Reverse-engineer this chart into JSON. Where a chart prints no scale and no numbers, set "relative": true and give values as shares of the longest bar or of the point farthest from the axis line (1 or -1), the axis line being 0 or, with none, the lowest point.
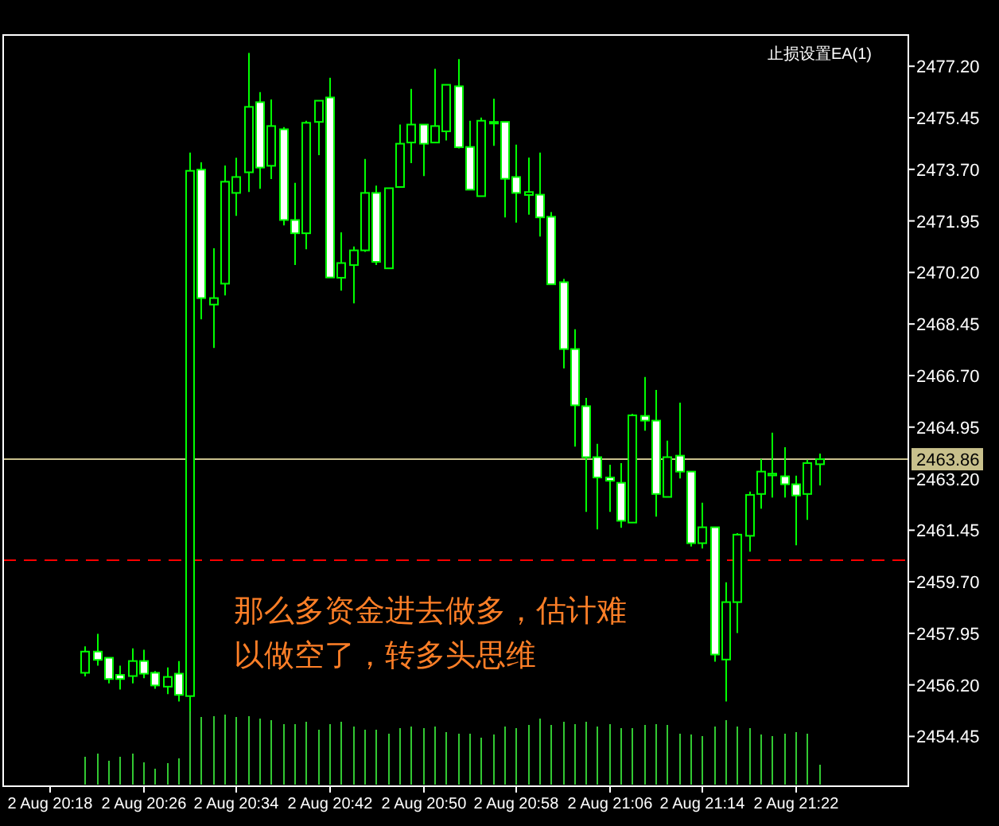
{
  "chart_data": [
    {
      "type": "candlestick",
      "color": "#00ff00",
      "categories": [
        null,
        null,
        null,
        null,
        null,
        "2 Aug 20:26",
        null,
        null,
        null,
        null,
        null,
        null,
        null,
        "2 Aug 20:34",
        null,
        null,
        null,
        null,
        null,
        null,
        null,
        "2 Aug 20:42",
        null,
        null,
        null,
        null,
        null,
        null,
        null,
        "2 Aug 20:50",
        null,
        null,
        null,
        null,
        null,
        null,
        null,
        "2 Aug 20:58",
        null,
        null,
        null,
        null,
        null,
        null,
        null,
        "2 Aug 21:06",
        null,
        null,
        null,
        null,
        null,
        null,
        null,
        "2 Aug 21:14",
        null,
        null,
        null,
        null,
        null,
        null,
        null,
        "2 Aug 21:22",
        null,
        null
      ],
      "ohlc": [
        [
          2456.61,
          2457.51,
          2456.49,
          2457.33
        ],
        [
          2457.33,
          2457.93,
          2456.85,
          2457.05
        ],
        [
          2457.12,
          2457.12,
          2456.25,
          2456.4
        ],
        [
          2456.54,
          2456.85,
          2456.04,
          2456.4
        ],
        [
          2456.5,
          2457.44,
          2456.25,
          2457.01
        ],
        [
          2457.01,
          2457.39,
          2456.43,
          2456.58
        ],
        [
          2456.61,
          2456.67,
          2456.07,
          2456.18
        ],
        [
          2456.14,
          2456.79,
          2455.89,
          2456.47
        ],
        [
          2456.58,
          2457.01,
          2455.64,
          2455.86
        ],
        [
          2455.82,
          2474.27,
          2455.28,
          2473.65
        ],
        [
          2473.69,
          2473.94,
          2468.61,
          2469.33
        ],
        [
          2469.11,
          2471.02,
          2467.64,
          2469.33
        ],
        [
          2469.82,
          2473.83,
          2469.42,
          2473.28
        ],
        [
          2472.9,
          2474.09,
          2472.12,
          2473.44
        ],
        [
          2473.6,
          2477.65,
          2472.93,
          2475.82
        ],
        [
          2475.98,
          2476.32,
          2473.04,
          2473.76
        ],
        [
          2473.82,
          2476.07,
          2473.37,
          2475.17
        ],
        [
          2475.06,
          2475.13,
          2471.8,
          2471.98
        ],
        [
          2471.98,
          2473.24,
          2470.45,
          2471.53
        ],
        [
          2471.53,
          2475.35,
          2470.99,
          2475.28
        ],
        [
          2475.31,
          2476.03,
          2474.18,
          2476.03
        ],
        [
          2476.14,
          2476.81,
          2470.03,
          2470.03
        ],
        [
          2470.02,
          2471.56,
          2469.58,
          2470.52
        ],
        [
          2470.45,
          2471.08,
          2469.15,
          2470.95
        ],
        [
          2470.95,
          2474.05,
          2470.9,
          2472.9
        ],
        [
          2472.9,
          2473.15,
          2470.45,
          2470.56
        ],
        [
          2470.34,
          2473.06,
          2470.34,
          2473.06
        ],
        [
          2473.1,
          2475.22,
          2473.1,
          2474.57
        ],
        [
          2474.61,
          2476.43,
          2473.91,
          2475.22
        ],
        [
          2475.22,
          2475.22,
          2473.47,
          2474.57
        ],
        [
          2474.61,
          2477.11,
          2474.61,
          2475.17
        ],
        [
          2474.99,
          2476.57,
          2474.68,
          2476.57
        ],
        [
          2476.52,
          2477.44,
          2474.41,
          2474.45
        ],
        [
          2474.46,
          2475.35,
          2473.01,
          2473.01
        ],
        [
          2472.79,
          2475.46,
          2472.79,
          2475.35
        ],
        [
          2475.31,
          2476.1,
          2474.5,
          2475.31
        ],
        [
          2475.31,
          2475.31,
          2472.07,
          2473.38
        ],
        [
          2473.44,
          2474.54,
          2471.89,
          2472.9
        ],
        [
          2472.83,
          2474.1,
          2472.16,
          2472.93
        ],
        [
          2472.84,
          2474.27,
          2471.42,
          2472.07
        ],
        [
          2472.09,
          2472.25,
          2469.8,
          2469.8
        ],
        [
          2469.87,
          2469.98,
          2466.94,
          2467.6
        ],
        [
          2467.6,
          2468.27,
          2464.29,
          2465.69
        ],
        [
          2465.66,
          2465.94,
          2462.07,
          2463.93
        ],
        [
          2463.93,
          2464.38,
          2461.48,
          2463.24
        ],
        [
          2463.24,
          2463.67,
          2462.07,
          2463.13
        ],
        [
          2463.06,
          2463.73,
          2461.53,
          2461.77
        ],
        [
          2461.71,
          2465.4,
          2461.71,
          2465.35
        ],
        [
          2465.33,
          2466.65,
          2464.83,
          2465.17
        ],
        [
          2465.17,
          2466.21,
          2461.91,
          2462.68
        ],
        [
          2462.58,
          2464.49,
          2462.58,
          2463.93
        ],
        [
          2463.98,
          2465.78,
          2463.21,
          2463.44
        ],
        [
          2463.44,
          2463.44,
          2460.9,
          2461.01
        ],
        [
          2461.01,
          2462.38,
          2460.83,
          2461.55
        ],
        [
          2461.55,
          2461.55,
          2456.99,
          2457.23
        ],
        [
          2457.06,
          2459.68,
          2455.64,
          2459.01
        ],
        [
          2459.01,
          2461.35,
          2457.96,
          2461.3
        ],
        [
          2461.26,
          2462.76,
          2460.72,
          2462.65
        ],
        [
          2462.68,
          2463.87,
          2462.18,
          2463.44
        ],
        [
          2463.31,
          2464.76,
          2462.56,
          2463.37
        ],
        [
          2463.28,
          2464.27,
          2462.56,
          2463.01
        ],
        [
          2463.01,
          2463.3,
          2460.94,
          2462.63
        ],
        [
          2462.68,
          2463.84,
          2461.8,
          2463.73
        ],
        [
          2463.69,
          2464.05,
          2462.97,
          2463.86
        ]
      ],
      "ylim": [
        2452.76,
        2478.26
      ],
      "yticks": [
        {
          "value": 2477.2,
          "label": "2477.20"
        },
        {
          "value": 2475.45,
          "label": "2475.45"
        },
        {
          "value": 2473.7,
          "label": "2473.70"
        },
        {
          "value": 2471.95,
          "label": "2471.95"
        },
        {
          "value": 2470.2,
          "label": "2470.20"
        },
        {
          "value": 2468.45,
          "label": "2468.45"
        },
        {
          "value": 2466.7,
          "label": "2466.70"
        },
        {
          "value": 2464.95,
          "label": "2464.95"
        },
        {
          "value": 2463.2,
          "label": "2463.20"
        },
        {
          "value": 2461.45,
          "label": "2461.45"
        },
        {
          "value": 2459.7,
          "label": "2459.70"
        },
        {
          "value": 2457.95,
          "label": "2457.95"
        },
        {
          "value": 2456.2,
          "label": "2456.20"
        },
        {
          "value": 2454.45,
          "label": "2454.45"
        }
      ],
      "ref_lines": [
        {
          "axis": "y",
          "value": 2463.86,
          "label": "2463.86",
          "color": "#c8c08c",
          "line_style": "solid"
        },
        {
          "axis": "y",
          "value": 2460.43,
          "color": "#ff0000",
          "line_style": "dashed"
        }
      ],
      "annotations": [
        "那么多资金进去做多，估计难以做空了，转多头思维",
        "止损设置EA(1)",
        "2 Aug 20:18"
      ]
    },
    {
      "type": "bar",
      "relative": true,
      "color": "#32c832",
      "categories": [
        null,
        null,
        null,
        null,
        null,
        null,
        null,
        null,
        null,
        null,
        null,
        null,
        null,
        null,
        null,
        null,
        null,
        null,
        null,
        null,
        null,
        null,
        null,
        null,
        null,
        null,
        null,
        null,
        null,
        null,
        null,
        null,
        null,
        null,
        null,
        null,
        null,
        null,
        null,
        null,
        null,
        null,
        null,
        null,
        null,
        null,
        null,
        null,
        null,
        null,
        null,
        null,
        null,
        null,
        null,
        null,
        null,
        null,
        null,
        null,
        null,
        null,
        null,
        null
      ],
      "values": [
        0.38,
        0.42,
        0.33,
        0.38,
        0.42,
        0.3,
        0.22,
        0.29,
        0.36,
        1,
        0.92,
        0.94,
        0.96,
        0.92,
        0.94,
        0.9,
        0.88,
        0.83,
        0.83,
        0.86,
        0.75,
        0.83,
        0.86,
        0.79,
        0.75,
        0.75,
        0.7,
        0.77,
        0.79,
        0.77,
        0.79,
        0.72,
        0.7,
        0.7,
        0.64,
        0.68,
        0.79,
        0.77,
        0.81,
        0.9,
        0.81,
        0.86,
        0.83,
        0.86,
        0.79,
        0.83,
        0.77,
        0.77,
        0.81,
        0.83,
        0.81,
        0.7,
        0.68,
        0.66,
        0.79,
        0.88,
        0.79,
        0.77,
        0.68,
        0.66,
        0.7,
        0.72,
        0.7,
        0.27
      ]
    }
  ]
}
